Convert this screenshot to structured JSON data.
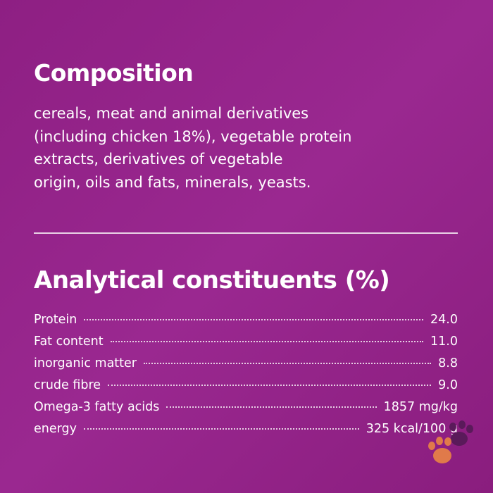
{
  "composition": {
    "title": "Composition",
    "lines": [
      "cereals, meat and animal derivatives",
      "(including chicken 18%), vegetable protein",
      "extracts, derivatives of vegetable",
      "origin, oils and fats, minerals, yeasts."
    ]
  },
  "analytical": {
    "title": "Analytical constituents (%)",
    "rows": [
      {
        "label": "Protein",
        "value": "24.0"
      },
      {
        "label": "Fat content",
        "value": "11.0"
      },
      {
        "label": "inorganic matter",
        "value": "8.8"
      },
      {
        "label": "crude fibre",
        "value": "9.0"
      },
      {
        "label": "Omega-3 fatty acids",
        "value": "1857 mg/kg"
      },
      {
        "label": "energy",
        "value": "325 kcal/100 g"
      }
    ]
  }
}
